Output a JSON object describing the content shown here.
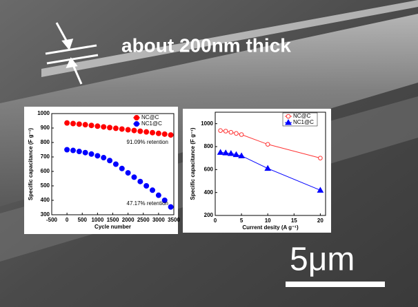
{
  "annotations": [
    "about 200nm thick",
    "5μm"
  ],
  "chart_data": [
    {
      "type": "scatter",
      "xlabel": "Cycle number",
      "ylabel": "Specific capacitance (F g⁻¹)",
      "x": [
        0,
        200,
        400,
        600,
        800,
        1000,
        1200,
        1400,
        1600,
        1800,
        2000,
        2200,
        2400,
        2600,
        2800,
        3000,
        3200,
        3400
      ],
      "series": [
        {
          "name": "NC@C",
          "color": "#ff0000",
          "marker": "circle",
          "filled": true,
          "values": [
            935,
            931,
            927,
            923,
            918,
            913,
            908,
            903,
            898,
            893,
            888,
            883,
            878,
            873,
            868,
            863,
            858,
            852
          ]
        },
        {
          "name": "NC1@C",
          "color": "#0000ff",
          "marker": "circle",
          "filled": true,
          "values": [
            750,
            745,
            738,
            730,
            720,
            708,
            695,
            675,
            650,
            620,
            590,
            560,
            530,
            500,
            470,
            435,
            400,
            354
          ]
        }
      ],
      "annotations": [
        "91.09% retention",
        "47.17% retention"
      ],
      "xlim": [
        -500,
        3500
      ],
      "xticks": [
        -500,
        0,
        500,
        1000,
        1500,
        2000,
        2500,
        3000,
        3500
      ],
      "ylim": [
        300,
        1000
      ],
      "yticks": [
        300,
        400,
        500,
        600,
        700,
        800,
        900,
        1000
      ],
      "legend": "upper right"
    },
    {
      "type": "line",
      "xlabel": "Current desity (A g⁻¹)",
      "ylabel": "Specific capacitance (F g⁻¹)",
      "x": [
        1,
        2,
        3,
        4,
        5,
        10,
        20
      ],
      "series": [
        {
          "name": "NC@C",
          "color": "#ff3333",
          "marker": "circle",
          "filled": false,
          "values": [
            940,
            935,
            925,
            915,
            905,
            820,
            700
          ]
        },
        {
          "name": "NC1@C",
          "color": "#0000ff",
          "marker": "triangle",
          "filled": true,
          "values": [
            750,
            745,
            740,
            730,
            720,
            610,
            420
          ]
        }
      ],
      "xlim": [
        0,
        21
      ],
      "xticks": [
        0,
        5,
        10,
        15,
        20
      ],
      "ylim": [
        200,
        1100
      ],
      "yticks": [
        200,
        400,
        600,
        800,
        1000
      ],
      "legend": "upper right"
    }
  ]
}
